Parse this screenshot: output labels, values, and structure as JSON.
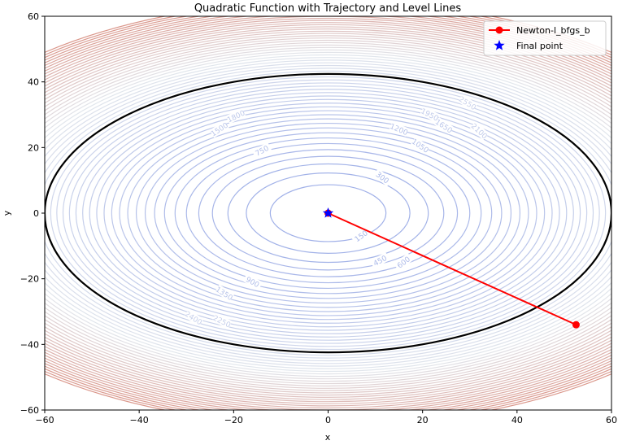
{
  "chart_data": {
    "type": "contour",
    "title": "Quadratic Function with Trajectory and Level Lines",
    "xlabel": "x",
    "ylabel": "y",
    "xlim": [
      -60,
      60
    ],
    "ylim": [
      -60,
      60
    ],
    "xticks": [
      -60,
      -40,
      -20,
      0,
      20,
      40,
      60
    ],
    "yticks": [
      -60,
      -40,
      -20,
      0,
      20,
      40,
      60
    ],
    "tick_labels_x": [
      "−60",
      "−40",
      "−20",
      "0",
      "20",
      "40",
      "60"
    ],
    "tick_labels_y": [
      "−60",
      "−40",
      "−20",
      "0",
      "20",
      "40",
      "60"
    ],
    "function": {
      "a": 1.0,
      "b": 2.0,
      "form": "a*x^2 + b*y^2"
    },
    "contour_levels": {
      "start": 150,
      "step": 150,
      "count": 56,
      "colormap": "coolwarm-light"
    },
    "highlight_level": {
      "value": 3600,
      "color": "#000000"
    },
    "contour_labels": [
      {
        "text": "150",
        "x": 7,
        "y": -7,
        "level": 150
      },
      {
        "text": "300",
        "x": 11.5,
        "y": 10.8,
        "level": 300
      },
      {
        "text": "450",
        "x": 11,
        "y": -14.5,
        "level": 450
      },
      {
        "text": "600",
        "x": 16,
        "y": -15,
        "level": 600
      },
      {
        "text": "750",
        "x": -14,
        "y": 19,
        "level": 750
      },
      {
        "text": "900",
        "x": -16,
        "y": -21,
        "level": 900
      },
      {
        "text": "1050",
        "x": 19.5,
        "y": 20.5,
        "level": 1050
      },
      {
        "text": "1200",
        "x": 15,
        "y": 25.5,
        "level": 1200
      },
      {
        "text": "1350",
        "x": -22,
        "y": -24.5,
        "level": 1350
      },
      {
        "text": "1500",
        "x": -23,
        "y": 25.5,
        "level": 1500
      },
      {
        "text": "1650",
        "x": 24.5,
        "y": 26.5,
        "level": 1650
      },
      {
        "text": "1800",
        "x": -19.5,
        "y": 29.5,
        "level": 1800
      },
      {
        "text": "1950",
        "x": 21.5,
        "y": 30,
        "level": 1950
      },
      {
        "text": "2100",
        "x": 32,
        "y": 25,
        "level": 2100
      },
      {
        "text": "2250",
        "x": -22.5,
        "y": -33,
        "level": 2250
      },
      {
        "text": "2400",
        "x": -28.5,
        "y": -32,
        "level": 2400
      },
      {
        "text": "2550",
        "x": 29.5,
        "y": 33.5,
        "level": 2550
      }
    ],
    "series": [
      {
        "name": "Newton-l_bfgs_b",
        "color": "#ff0000",
        "marker": "circle",
        "x": [
          52.5,
          0.0
        ],
        "y": [
          -34.0,
          0.0
        ]
      },
      {
        "name": "Final point",
        "color": "#0000ff",
        "marker": "star",
        "x": [
          0.0
        ],
        "y": [
          0.0
        ]
      }
    ],
    "legend": {
      "position": "top-right"
    },
    "grid": false
  }
}
